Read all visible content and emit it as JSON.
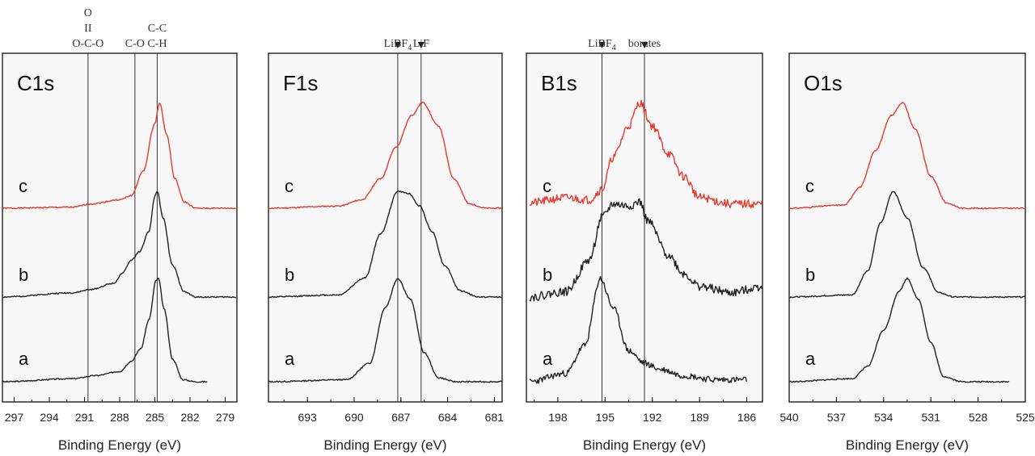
{
  "chart_data": [
    {
      "type": "line",
      "title": "C1s",
      "xlabel": "Binding Energy (eV)",
      "xlim": [
        298,
        278
      ],
      "xticks": [
        297,
        294,
        291,
        288,
        285,
        282,
        279
      ],
      "reference_lines": [
        {
          "x": 290.7,
          "label_lines": [
            "O",
            "II",
            "O-C-O"
          ]
        },
        {
          "x": 286.7,
          "label_lines": [
            "C-O"
          ]
        },
        {
          "x": 284.8,
          "label_lines": [
            "C-C",
            "C-H"
          ]
        }
      ],
      "series": [
        {
          "name": "c",
          "color": "#e8392e",
          "offset": 2.0,
          "width": 0.9,
          "base": [
            [
              298,
              0
            ],
            [
              292,
              0.01
            ],
            [
              290.5,
              0.04
            ],
            [
              288,
              0.08
            ],
            [
              287,
              0.12
            ],
            [
              286,
              0.35
            ],
            [
              285,
              0.8
            ],
            [
              284.6,
              1.0
            ],
            [
              284,
              0.7
            ],
            [
              283.3,
              0.28
            ],
            [
              282.5,
              0.06
            ],
            [
              281.5,
              0
            ],
            [
              278,
              0
            ]
          ]
        },
        {
          "name": "b",
          "color": "#222222",
          "offset": 1.0,
          "width": 0.9,
          "base": [
            [
              298,
              0
            ],
            [
              292,
              0.04
            ],
            [
              290.5,
              0.07
            ],
            [
              288.5,
              0.13
            ],
            [
              287.8,
              0.22
            ],
            [
              287,
              0.35
            ],
            [
              286.3,
              0.43
            ],
            [
              285.5,
              0.62
            ],
            [
              285,
              0.95
            ],
            [
              284.8,
              1.0
            ],
            [
              284.3,
              0.75
            ],
            [
              283.5,
              0.3
            ],
            [
              282.5,
              0.05
            ],
            [
              281.5,
              0
            ],
            [
              278,
              0
            ]
          ]
        },
        {
          "name": "a",
          "color": "#222222",
          "offset": 0.0,
          "width": 0.9,
          "base": [
            [
              298,
              0
            ],
            [
              292,
              0.03
            ],
            [
              290,
              0.06
            ],
            [
              288,
              0.1
            ],
            [
              287,
              0.2
            ],
            [
              286.2,
              0.32
            ],
            [
              285.5,
              0.6
            ],
            [
              284.9,
              0.98
            ],
            [
              284.7,
              1.0
            ],
            [
              284.2,
              0.7
            ],
            [
              283.5,
              0.22
            ],
            [
              282.6,
              0.02
            ],
            [
              281.5,
              0
            ],
            [
              280.5,
              0
            ]
          ]
        }
      ]
    },
    {
      "type": "line",
      "title": "F1s",
      "xlabel": "Binding Energy (eV)",
      "xlim": [
        695.5,
        680.5
      ],
      "xticks": [
        693,
        690,
        687,
        684,
        681
      ],
      "reference_lines": [
        {
          "x": 687.2,
          "label_lines": [
            "LiBF4"
          ],
          "arrow": true
        },
        {
          "x": 685.7,
          "label_lines": [
            "LiF"
          ],
          "arrow": true
        }
      ],
      "series": [
        {
          "name": "c",
          "color": "#e8392e",
          "offset": 2.0,
          "width": 0.9,
          "base": [
            [
              695.5,
              0
            ],
            [
              691,
              0.02
            ],
            [
              689.5,
              0.08
            ],
            [
              688.3,
              0.28
            ],
            [
              687.3,
              0.58
            ],
            [
              686.3,
              0.88
            ],
            [
              685.6,
              1.0
            ],
            [
              684.6,
              0.78
            ],
            [
              683.6,
              0.28
            ],
            [
              682.6,
              0.04
            ],
            [
              681.5,
              0
            ],
            [
              680.5,
              0
            ]
          ]
        },
        {
          "name": "b",
          "color": "#222222",
          "offset": 1.0,
          "width": 0.9,
          "base": [
            [
              695.5,
              0
            ],
            [
              691,
              0.02
            ],
            [
              689.3,
              0.18
            ],
            [
              688.3,
              0.6
            ],
            [
              687.2,
              1.0
            ],
            [
              686.5,
              0.98
            ],
            [
              685.8,
              0.86
            ],
            [
              685,
              0.62
            ],
            [
              684.2,
              0.3
            ],
            [
              683.2,
              0.06
            ],
            [
              682,
              0
            ],
            [
              680.5,
              0
            ]
          ]
        },
        {
          "name": "a",
          "color": "#222222",
          "offset": 0.0,
          "width": 0.9,
          "base": [
            [
              695.5,
              0
            ],
            [
              690.5,
              0.02
            ],
            [
              689,
              0.18
            ],
            [
              688,
              0.72
            ],
            [
              687.2,
              1.0
            ],
            [
              686.4,
              0.8
            ],
            [
              685.5,
              0.28
            ],
            [
              684.6,
              0.04
            ],
            [
              683.5,
              0
            ],
            [
              680.5,
              0
            ]
          ]
        }
      ]
    },
    {
      "type": "line",
      "title": "B1s",
      "xlabel": "Binding Energy (eV)",
      "xlim": [
        200,
        185
      ],
      "xticks": [
        198,
        195,
        192,
        189,
        186
      ],
      "reference_lines": [
        {
          "x": 195.2,
          "label_lines": [
            "LiBF4"
          ],
          "arrow": true
        },
        {
          "x": 192.5,
          "label_lines": [
            "borates"
          ],
          "arrow": true
        }
      ],
      "series": [
        {
          "name": "c",
          "color": "#e8392e",
          "offset": 2.0,
          "width": 0.9,
          "noise": 0.04,
          "base": [
            [
              199.8,
              0.05
            ],
            [
              197.5,
              0.1
            ],
            [
              196,
              0.08
            ],
            [
              195.2,
              0.18
            ],
            [
              194.5,
              0.48
            ],
            [
              193.5,
              0.78
            ],
            [
              192.8,
              1.0
            ],
            [
              192,
              0.78
            ],
            [
              191,
              0.52
            ],
            [
              190,
              0.3
            ],
            [
              189,
              0.1
            ],
            [
              187,
              0.04
            ],
            [
              185,
              0.04
            ]
          ]
        },
        {
          "name": "b",
          "color": "#222222",
          "offset": 1.0,
          "width": 0.9,
          "noise": 0.04,
          "base": [
            [
              199.8,
              0
            ],
            [
              197.5,
              0.05
            ],
            [
              196,
              0.35
            ],
            [
              195.2,
              0.75
            ],
            [
              194.5,
              0.88
            ],
            [
              193.5,
              0.86
            ],
            [
              192.8,
              0.9
            ],
            [
              192.3,
              0.72
            ],
            [
              191,
              0.4
            ],
            [
              190,
              0.22
            ],
            [
              189,
              0.1
            ],
            [
              187,
              0.04
            ],
            [
              185,
              0.1
            ]
          ]
        },
        {
          "name": "a",
          "color": "#222222",
          "offset": 0.0,
          "width": 0.9,
          "noise": 0.03,
          "base": [
            [
              199.8,
              0
            ],
            [
              197.5,
              0.08
            ],
            [
              196.3,
              0.35
            ],
            [
              195.3,
              1.0
            ],
            [
              194.5,
              0.72
            ],
            [
              193.5,
              0.3
            ],
            [
              192.5,
              0.18
            ],
            [
              191.5,
              0.12
            ],
            [
              190,
              0.06
            ],
            [
              188,
              0.02
            ],
            [
              186,
              0.02
            ]
          ]
        }
      ]
    },
    {
      "type": "line",
      "title": "O1s",
      "xlabel": "Binding Energy (eV)",
      "xlim": [
        540,
        525
      ],
      "xticks": [
        540,
        537,
        534,
        531,
        528,
        525
      ],
      "reference_lines": [],
      "series": [
        {
          "name": "c",
          "color": "#e8392e",
          "offset": 2.0,
          "width": 0.9,
          "base": [
            [
              540,
              0
            ],
            [
              536.5,
              0.03
            ],
            [
              535.5,
              0.2
            ],
            [
              534.5,
              0.55
            ],
            [
              533.5,
              0.88
            ],
            [
              532.8,
              1.0
            ],
            [
              532,
              0.75
            ],
            [
              531,
              0.3
            ],
            [
              530,
              0.05
            ],
            [
              529,
              0
            ],
            [
              525,
              0
            ]
          ]
        },
        {
          "name": "b",
          "color": "#222222",
          "offset": 1.0,
          "width": 0.9,
          "base": [
            [
              540,
              0
            ],
            [
              536,
              0.02
            ],
            [
              535,
              0.25
            ],
            [
              534.2,
              0.7
            ],
            [
              533.4,
              1.0
            ],
            [
              532.5,
              0.75
            ],
            [
              531.5,
              0.28
            ],
            [
              530.5,
              0.04
            ],
            [
              529.5,
              0
            ],
            [
              525,
              0
            ]
          ]
        },
        {
          "name": "a",
          "color": "#222222",
          "offset": 0.0,
          "width": 0.9,
          "base": [
            [
              540,
              0
            ],
            [
              536,
              0.03
            ],
            [
              535,
              0.15
            ],
            [
              534,
              0.5
            ],
            [
              533,
              0.88
            ],
            [
              532.5,
              1.0
            ],
            [
              531.8,
              0.8
            ],
            [
              531,
              0.38
            ],
            [
              530.2,
              0.05
            ],
            [
              529,
              0
            ],
            [
              526,
              0
            ]
          ]
        }
      ]
    }
  ]
}
